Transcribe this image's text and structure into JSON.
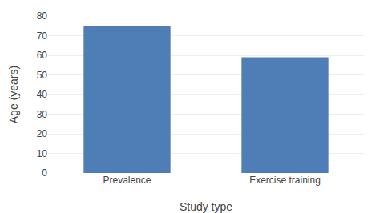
{
  "chart_data": {
    "type": "bar",
    "categories": [
      "Prevalence",
      "Exercise training"
    ],
    "values": [
      75,
      59
    ],
    "color": "#4e7eb5",
    "xlabel": "Study type",
    "ylabel": "Age (years)",
    "ylim": [
      0,
      80
    ],
    "yticks": [
      0,
      10,
      20,
      30,
      40,
      50,
      60,
      70,
      80
    ],
    "grid": true
  }
}
